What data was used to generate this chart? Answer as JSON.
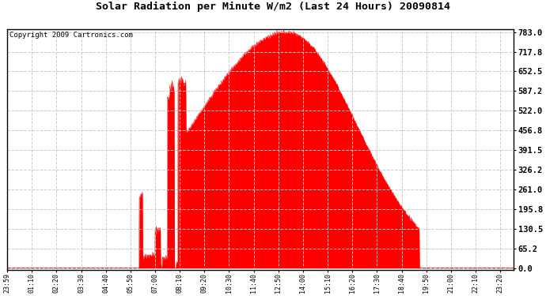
{
  "title": "Solar Radiation per Minute W/m2 (Last 24 Hours) 20090814",
  "copyright": "Copyright 2009 Cartronics.com",
  "bg_color": "#ffffff",
  "plot_bg_color": "#ffffff",
  "fill_color": "#ff0000",
  "line_color": "#ff0000",
  "dashed_line_color": "#ff0000",
  "grid_color": "#cccccc",
  "yticks": [
    0.0,
    65.2,
    130.5,
    195.8,
    261.0,
    326.2,
    391.5,
    456.8,
    522.0,
    587.2,
    652.5,
    717.8,
    783.0
  ],
  "ymax": 783.0,
  "ymin": 0.0,
  "xtick_labels": [
    "23:59",
    "01:10",
    "02:20",
    "03:30",
    "04:40",
    "05:50",
    "07:00",
    "08:10",
    "09:20",
    "10:30",
    "11:40",
    "12:50",
    "14:00",
    "15:10",
    "16:20",
    "17:30",
    "18:40",
    "19:50",
    "21:00",
    "22:10",
    "23:20"
  ],
  "num_points": 1440,
  "sunrise_min": 375,
  "sunset_min": 1170,
  "peak_value": 783.0,
  "peak_time_min": 795
}
